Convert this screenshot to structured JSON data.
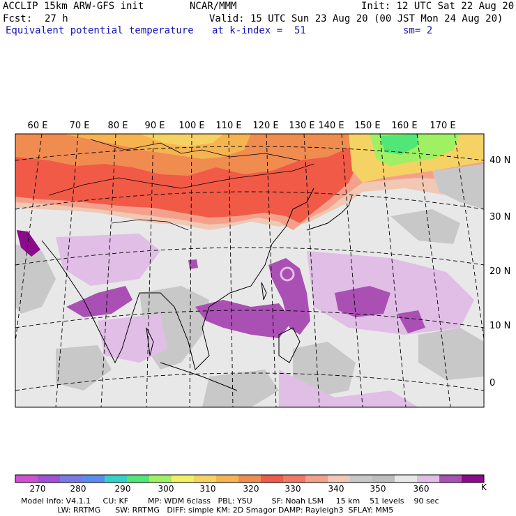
{
  "header": {
    "model": "ACCLIP 15km ARW-GFS init",
    "forecast_label": "Fcst:",
    "forecast_value": "27 h",
    "field": "Equivalent potential temperature",
    "center": "NCAR/MMM",
    "valid": "Valid: 15 UTC Sun 23 Aug 20 (00 JST Mon 24 Aug 20)",
    "level": "at k-index =  51",
    "init": "Init: 12 UTC Sat 22 Aug 20",
    "smooth": "sm= 2"
  },
  "map": {
    "lon_labels": [
      "60 E",
      "70 E",
      "80 E",
      "90 E",
      "100 E",
      "110 E",
      "120 E",
      "130 E",
      "140 E",
      "150 E",
      "160 E",
      "170 E"
    ],
    "lat_labels": [
      "40 N",
      "30 N",
      "20 N",
      "10 N",
      "0"
    ]
  },
  "colorbar": {
    "ticks": [
      "270",
      "280",
      "290",
      "300",
      "310",
      "320",
      "330",
      "340",
      "350",
      "360"
    ],
    "unit": "K",
    "colors": [
      "#d050d0",
      "#a050d8",
      "#7878e6",
      "#5a8cf0",
      "#32d2c8",
      "#50e678",
      "#a0f064",
      "#f0f064",
      "#f5d264",
      "#f5b450",
      "#f08c50",
      "#f05a46",
      "#f07864",
      "#f5a08c",
      "#f0c8b4",
      "#c8c8c8",
      "#bebebe",
      "#e8e8e8",
      "#e0bee6",
      "#aa50b4",
      "#8c0a8c"
    ]
  },
  "footer": {
    "line1": "Model Info: V4.1.1     CU: KF        MP: WDM 6class   PBL: YSU        SF: Noah LSM     15 km    51 levels    90 sec",
    "line2": "               LW: RRTMG      SW: RRTMG   DIFF: simple KM: 2D Smagor DAMP: Rayleigh3  SFLAY: MM5"
  },
  "colors": {
    "title_blue": "#1414b4",
    "high_theta": "#f05a46",
    "mid_theta": "#f5a08c",
    "moist_purple": "#aa50b4",
    "light_purple": "#e0bee6",
    "gray": "#c8c8c8"
  }
}
